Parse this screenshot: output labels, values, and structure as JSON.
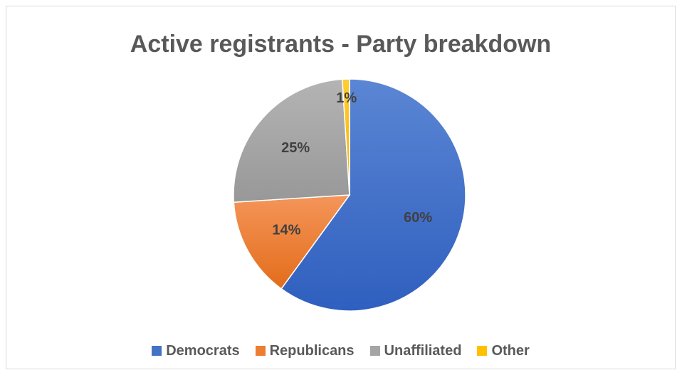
{
  "chart_data": {
    "type": "pie",
    "title": "Active registrants - Party breakdown",
    "categories": [
      "Democrats",
      "Republicans",
      "Unaffiliated",
      "Other"
    ],
    "values": [
      60,
      14,
      25,
      1
    ],
    "data_labels": [
      "60%",
      "14%",
      "25%",
      "1%"
    ],
    "colors": [
      "#4472c4",
      "#ed7d31",
      "#a5a5a5",
      "#ffc000"
    ],
    "legend_position": "bottom"
  }
}
